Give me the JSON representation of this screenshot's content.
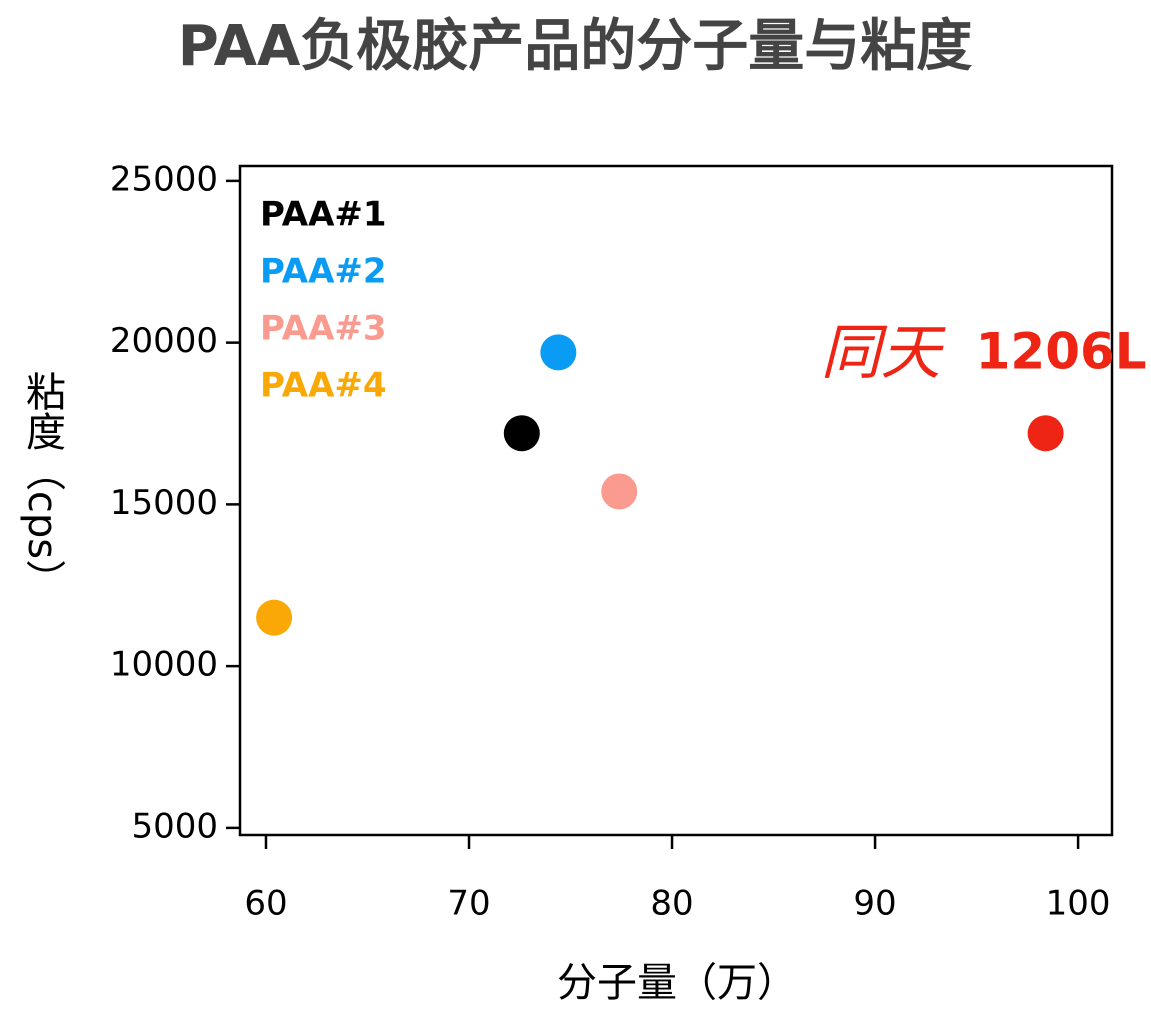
{
  "chart_data": {
    "type": "scatter",
    "title": "PAA负极胶产品的分子量与粘度",
    "x_label": "分子量（万）",
    "y_label": "粘度（cps）",
    "annotation": "同天",
    "xlim": [
      58.72,
      101.67
    ],
    "xticks": [
      60,
      70,
      80,
      90,
      100
    ],
    "ylim": [
      4780,
      25460
    ],
    "yticks": [
      5000,
      10000,
      15000,
      20000,
      25000
    ],
    "legend": "upper left",
    "series": [
      {
        "name": "PAA#1",
        "color": "#000000",
        "x": [
          72.6
        ],
        "values": [
          17200
        ]
      },
      {
        "name": "PAA#2",
        "color": "#0a9cf5",
        "x": [
          74.4
        ],
        "values": [
          19700
        ]
      },
      {
        "name": "PAA#3",
        "color": "#fb9a8f",
        "x": [
          77.4
        ],
        "values": [
          15400
        ]
      },
      {
        "name": "PAA#4",
        "color": "#f9a806",
        "x": [
          60.4
        ],
        "values": [
          11500
        ]
      },
      {
        "name": "1206L",
        "color": "#ee2414",
        "x": [
          98.4
        ],
        "values": [
          17200
        ]
      }
    ]
  }
}
